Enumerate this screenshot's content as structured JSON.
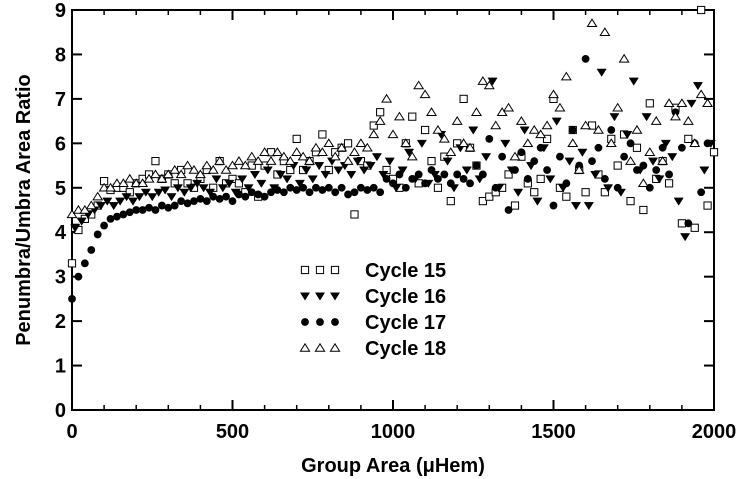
{
  "chart_data": {
    "type": "scatter",
    "title": "",
    "xlabel": "Group Area (μHem)",
    "ylabel": "Penumbra/Umbra Area Ratio",
    "xlim": [
      0,
      2000
    ],
    "ylim": [
      0,
      9
    ],
    "x_ticks": [
      "0",
      "500",
      "1000",
      "1500",
      "2000"
    ],
    "y_ticks": [
      "0",
      "1",
      "2",
      "3",
      "4",
      "5",
      "6",
      "7",
      "8",
      "9"
    ],
    "grid": false,
    "legend": "center",
    "series": [
      {
        "name": "Cycle 15",
        "marker": "open-square",
        "x": [
          0,
          10,
          20,
          40,
          60,
          80,
          100,
          120,
          140,
          160,
          180,
          200,
          220,
          240,
          260,
          280,
          300,
          320,
          340,
          360,
          380,
          400,
          420,
          440,
          460,
          480,
          500,
          520,
          540,
          560,
          580,
          600,
          620,
          640,
          660,
          680,
          700,
          720,
          740,
          760,
          780,
          800,
          820,
          840,
          860,
          880,
          900,
          920,
          940,
          960,
          980,
          1000,
          1020,
          1040,
          1060,
          1080,
          1100,
          1120,
          1140,
          1160,
          1180,
          1200,
          1220,
          1240,
          1260,
          1280,
          1300,
          1320,
          1340,
          1360,
          1380,
          1400,
          1420,
          1440,
          1460,
          1480,
          1500,
          1520,
          1540,
          1560,
          1580,
          1600,
          1620,
          1640,
          1660,
          1680,
          1700,
          1720,
          1740,
          1760,
          1780,
          1800,
          1820,
          1840,
          1860,
          1880,
          1900,
          1920,
          1940,
          1960,
          1980,
          2000
        ],
        "y": [
          3.3,
          4.1,
          4.05,
          4.3,
          4.4,
          4.6,
          5.15,
          4.95,
          5.0,
          5.0,
          4.9,
          5.1,
          5.2,
          5.3,
          5.6,
          5.2,
          5.3,
          5.1,
          5.4,
          5.1,
          5.0,
          5.2,
          5.4,
          5.0,
          5.6,
          5.1,
          5.2,
          5.1,
          4.9,
          5.5,
          4.8,
          5.5,
          5.8,
          5.3,
          5.6,
          5.4,
          6.1,
          5.4,
          5.6,
          5.8,
          6.2,
          5.4,
          5.8,
          5.9,
          6.0,
          4.4,
          5.6,
          5.5,
          6.4,
          6.7,
          5.4,
          5.2,
          5.0,
          6.0,
          6.6,
          5.1,
          6.3,
          5.6,
          5.0,
          5.7,
          4.7,
          6.0,
          7.0,
          5.9,
          5.5,
          4.7,
          4.8,
          4.9,
          5.0,
          5.3,
          4.6,
          5.7,
          5.1,
          4.9,
          5.2,
          6.1,
          7.0,
          5.0,
          4.8,
          6.3,
          5.4,
          4.9,
          6.4,
          5.3,
          4.9,
          6.1,
          5.5,
          6.2,
          4.7,
          5.9,
          4.5,
          6.9,
          5.2,
          5.6,
          5.1,
          6.8,
          4.2,
          6.1,
          4.1,
          9.0,
          4.6,
          5.8
        ],
        "color": "#000000"
      },
      {
        "name": "Cycle 16",
        "marker": "filled-triangle-down",
        "x": [
          10,
          30,
          50,
          70,
          90,
          110,
          130,
          150,
          170,
          190,
          210,
          230,
          250,
          270,
          290,
          310,
          330,
          350,
          370,
          390,
          410,
          430,
          450,
          470,
          490,
          510,
          530,
          550,
          570,
          590,
          610,
          630,
          650,
          670,
          690,
          710,
          730,
          750,
          770,
          790,
          810,
          830,
          850,
          870,
          890,
          910,
          930,
          950,
          970,
          990,
          1010,
          1030,
          1050,
          1070,
          1090,
          1110,
          1130,
          1150,
          1170,
          1190,
          1210,
          1230,
          1250,
          1270,
          1290,
          1310,
          1330,
          1350,
          1370,
          1390,
          1410,
          1430,
          1450,
          1470,
          1490,
          1510,
          1530,
          1550,
          1570,
          1590,
          1610,
          1630,
          1650,
          1670,
          1690,
          1710,
          1730,
          1750,
          1770,
          1790,
          1810,
          1830,
          1850,
          1870,
          1890,
          1910,
          1930,
          1950,
          1970,
          1990
        ],
        "y": [
          4.1,
          4.25,
          4.4,
          4.5,
          4.6,
          4.7,
          4.6,
          4.7,
          4.8,
          4.7,
          4.8,
          4.9,
          4.8,
          4.9,
          4.95,
          4.8,
          5.0,
          4.9,
          5.0,
          5.1,
          5.0,
          4.9,
          5.2,
          5.0,
          5.1,
          4.9,
          5.2,
          5.0,
          5.3,
          5.1,
          5.4,
          5.0,
          5.3,
          5.2,
          5.5,
          5.1,
          5.4,
          5.2,
          5.5,
          5.3,
          5.6,
          5.4,
          5.5,
          5.3,
          5.6,
          5.4,
          5.5,
          5.7,
          5.3,
          5.6,
          5.0,
          5.4,
          5.8,
          5.2,
          6.0,
          5.1,
          5.3,
          6.2,
          5.6,
          5.0,
          5.9,
          5.4,
          6.3,
          5.2,
          5.7,
          7.4,
          5.0,
          6.0,
          5.4,
          4.9,
          6.3,
          5.5,
          4.7,
          5.9,
          5.2,
          6.5,
          5.0,
          5.6,
          4.6,
          5.8,
          4.6,
          5.3,
          7.6,
          5.0,
          6.6,
          4.9,
          6.2,
          7.4,
          5.4,
          6.6,
          5.6,
          5.2,
          6.0,
          5.7,
          4.7,
          3.9,
          6.9,
          7.3,
          5.4,
          6.0
        ],
        "color": "#000000"
      },
      {
        "name": "Cycle 17",
        "marker": "filled-circle",
        "x": [
          0,
          20,
          40,
          60,
          80,
          100,
          120,
          140,
          160,
          180,
          200,
          220,
          240,
          260,
          280,
          300,
          320,
          340,
          360,
          380,
          400,
          420,
          440,
          460,
          480,
          500,
          520,
          540,
          560,
          580,
          600,
          620,
          640,
          660,
          680,
          700,
          720,
          740,
          760,
          780,
          800,
          820,
          840,
          860,
          880,
          900,
          920,
          940,
          960,
          980,
          1000,
          1020,
          1040,
          1060,
          1080,
          1100,
          1120,
          1140,
          1160,
          1180,
          1200,
          1220,
          1240,
          1260,
          1280,
          1300,
          1320,
          1340,
          1360,
          1380,
          1400,
          1420,
          1440,
          1460,
          1480,
          1500,
          1520,
          1540,
          1560,
          1580,
          1600,
          1620,
          1640,
          1660,
          1680,
          1700,
          1720,
          1740,
          1760,
          1780,
          1800,
          1820,
          1840,
          1860,
          1880,
          1900,
          1920,
          1940,
          1960,
          1980
        ],
        "y": [
          2.5,
          3.0,
          3.3,
          3.6,
          3.95,
          4.15,
          4.3,
          4.35,
          4.4,
          4.45,
          4.5,
          4.5,
          4.55,
          4.5,
          4.6,
          4.55,
          4.6,
          4.7,
          4.65,
          4.7,
          4.75,
          4.7,
          4.8,
          4.75,
          4.8,
          4.7,
          4.85,
          4.8,
          4.9,
          4.85,
          4.8,
          4.9,
          4.95,
          4.9,
          5.0,
          4.95,
          5.0,
          4.9,
          5.0,
          4.95,
          5.0,
          4.9,
          5.0,
          4.85,
          4.9,
          5.0,
          4.95,
          5.0,
          4.9,
          5.2,
          5.1,
          5.3,
          5.0,
          5.2,
          5.3,
          5.1,
          5.4,
          5.2,
          5.3,
          5.1,
          5.3,
          5.2,
          5.1,
          5.5,
          5.3,
          6.1,
          5.0,
          5.7,
          4.5,
          5.4,
          5.8,
          5.2,
          5.6,
          5.9,
          5.4,
          4.6,
          5.7,
          5.1,
          6.3,
          5.5,
          7.9,
          5.6,
          5.9,
          5.2,
          6.3,
          5.0,
          5.7,
          6.0,
          5.4,
          5.5,
          5.0,
          5.4,
          5.9,
          5.3,
          6.7,
          5.9,
          4.2,
          6.0,
          4.9,
          6.0
        ],
        "color": "#000000"
      },
      {
        "name": "Cycle 18",
        "marker": "open-triangle-up",
        "x": [
          0,
          20,
          40,
          60,
          80,
          100,
          120,
          140,
          160,
          180,
          200,
          220,
          240,
          260,
          280,
          300,
          320,
          340,
          360,
          380,
          400,
          420,
          440,
          460,
          480,
          500,
          520,
          540,
          560,
          580,
          600,
          620,
          640,
          660,
          680,
          700,
          720,
          740,
          760,
          780,
          800,
          820,
          840,
          860,
          880,
          900,
          920,
          940,
          960,
          980,
          1000,
          1020,
          1040,
          1060,
          1080,
          1100,
          1120,
          1140,
          1160,
          1180,
          1200,
          1220,
          1240,
          1260,
          1280,
          1300,
          1320,
          1340,
          1360,
          1380,
          1400,
          1420,
          1440,
          1460,
          1480,
          1500,
          1520,
          1540,
          1560,
          1580,
          1600,
          1620,
          1640,
          1660,
          1680,
          1700,
          1720,
          1740,
          1760,
          1780,
          1800,
          1820,
          1840,
          1860,
          1880,
          1900,
          1920,
          1940,
          1960,
          1980
        ],
        "y": [
          4.4,
          4.5,
          4.5,
          4.6,
          4.8,
          5.0,
          5.0,
          5.1,
          5.1,
          5.2,
          5.1,
          5.1,
          5.2,
          5.3,
          5.2,
          5.3,
          5.4,
          5.3,
          5.5,
          5.4,
          5.3,
          5.5,
          5.4,
          5.6,
          5.4,
          5.5,
          5.6,
          5.5,
          5.7,
          5.6,
          5.8,
          5.6,
          5.8,
          5.7,
          5.6,
          5.8,
          5.7,
          5.6,
          5.9,
          5.8,
          6.0,
          5.7,
          5.9,
          5.6,
          5.8,
          6.0,
          5.9,
          6.2,
          6.5,
          7.0,
          6.2,
          6.6,
          6.0,
          5.7,
          7.3,
          7.1,
          6.7,
          6.3,
          6.1,
          5.8,
          6.5,
          6.0,
          5.9,
          6.7,
          7.4,
          7.3,
          6.4,
          6.7,
          6.8,
          5.7,
          6.5,
          6.0,
          6.3,
          6.2,
          6.4,
          7.1,
          6.8,
          7.5,
          6.0,
          5.4,
          6.4,
          8.7,
          6.3,
          8.5,
          6.0,
          6.8,
          7.9,
          5.6,
          6.3,
          5.1,
          5.8,
          6.5,
          5.6,
          6.9,
          6.6,
          6.9,
          6.5,
          6.0,
          7.1,
          6.9
        ],
        "color": "#000000"
      }
    ]
  }
}
